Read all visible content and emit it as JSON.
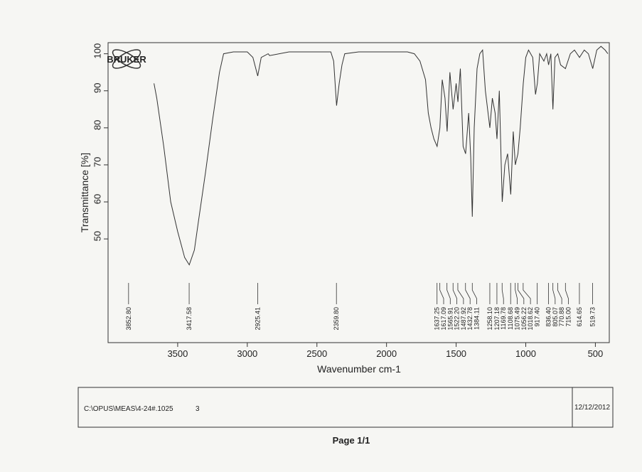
{
  "chart_data": {
    "type": "line",
    "logo": "BRUKER",
    "x_label": "Wavenumber cm-1",
    "y_label": "Transmittance [%]",
    "xlim": [
      4000,
      400
    ],
    "ylim": [
      22,
      103
    ],
    "xticks": [
      3500,
      3000,
      2500,
      2000,
      1500,
      1000,
      500
    ],
    "yticks": [
      50,
      60,
      70,
      80,
      90,
      100
    ],
    "color": "#333333",
    "x": [
      3670,
      3650,
      3600,
      3550,
      3500,
      3450,
      3417,
      3380,
      3350,
      3300,
      3250,
      3200,
      3170,
      3100,
      3000,
      2960,
      2925,
      2900,
      2850,
      2840,
      2700,
      2500,
      2400,
      2380,
      2359,
      2340,
      2320,
      2300,
      2200,
      2000,
      1850,
      1800,
      1760,
      1720,
      1700,
      1680,
      1660,
      1637,
      1617,
      1600,
      1580,
      1565,
      1545,
      1522,
      1500,
      1487,
      1470,
      1450,
      1432,
      1410,
      1395,
      1384,
      1370,
      1350,
      1330,
      1310,
      1290,
      1258,
      1240,
      1220,
      1207,
      1190,
      1169,
      1150,
      1130,
      1108,
      1090,
      1075,
      1056,
      1040,
      1018,
      1000,
      980,
      950,
      930,
      917,
      900,
      870,
      850,
      836,
      820,
      805,
      790,
      770,
      750,
      715,
      680,
      650,
      614,
      580,
      550,
      519,
      490,
      460,
      430,
      410
    ],
    "values": [
      92,
      88,
      75,
      60,
      52,
      45,
      43,
      47,
      55,
      68,
      82,
      95,
      100,
      100.5,
      100.5,
      99,
      94,
      99,
      100,
      99.5,
      100.5,
      100.5,
      100.5,
      98,
      86,
      92,
      97,
      100,
      100.5,
      100.5,
      100.5,
      100,
      98,
      93,
      84,
      80,
      77,
      75,
      80,
      93,
      88,
      79,
      95,
      85,
      92,
      87,
      96,
      75,
      73,
      84,
      72,
      56,
      80,
      96,
      100,
      101,
      90,
      80,
      88,
      84,
      77,
      90,
      60,
      70,
      73,
      62,
      79,
      70,
      73,
      80,
      92,
      99,
      101,
      99,
      89,
      92,
      100,
      98,
      100,
      97,
      100,
      85,
      99,
      100,
      97,
      96,
      100,
      101,
      99,
      101,
      100,
      96,
      101,
      102,
      101,
      100
    ],
    "peaks": [
      {
        "value": 3852.8,
        "label": "3852.80"
      },
      {
        "value": 3417.58,
        "label": "3417.58"
      },
      {
        "value": 2925.41,
        "label": "2925.41"
      },
      {
        "value": 2359.8,
        "label": "2359.80"
      },
      {
        "value": 1637.25,
        "label": "1637.25"
      },
      {
        "value": 1617.09,
        "label": "1617.09"
      },
      {
        "value": 1565.91,
        "label": "1565.91"
      },
      {
        "value": 1522.2,
        "label": "1522.20"
      },
      {
        "value": 1487.92,
        "label": "1487.92"
      },
      {
        "value": 1432.78,
        "label": "1432.78"
      },
      {
        "value": 1384.11,
        "label": "1384.11"
      },
      {
        "value": 1258.1,
        "label": "1258.10"
      },
      {
        "value": 1207.18,
        "label": "1207.18"
      },
      {
        "value": 1169.78,
        "label": "1169.78"
      },
      {
        "value": 1108.68,
        "label": "1108.68"
      },
      {
        "value": 1075.49,
        "label": "1075.49"
      },
      {
        "value": 1056.22,
        "label": "1056.22"
      },
      {
        "value": 1018.62,
        "label": "1018.62"
      },
      {
        "value": 917.4,
        "label": "917.40"
      },
      {
        "value": 836.4,
        "label": "836.40"
      },
      {
        "value": 805.07,
        "label": "805.07"
      },
      {
        "value": 770.88,
        "label": "770.88"
      },
      {
        "value": 715,
        "label": "715.00"
      },
      {
        "value": 614.65,
        "label": "614.65"
      },
      {
        "value": 519.73,
        "label": "519.73"
      }
    ],
    "footer": {
      "file": "C:\\OPUS\\MEAS\\4-24#.1025",
      "number": "3",
      "date": "12/12/2012",
      "page": "Page 1/1"
    }
  }
}
